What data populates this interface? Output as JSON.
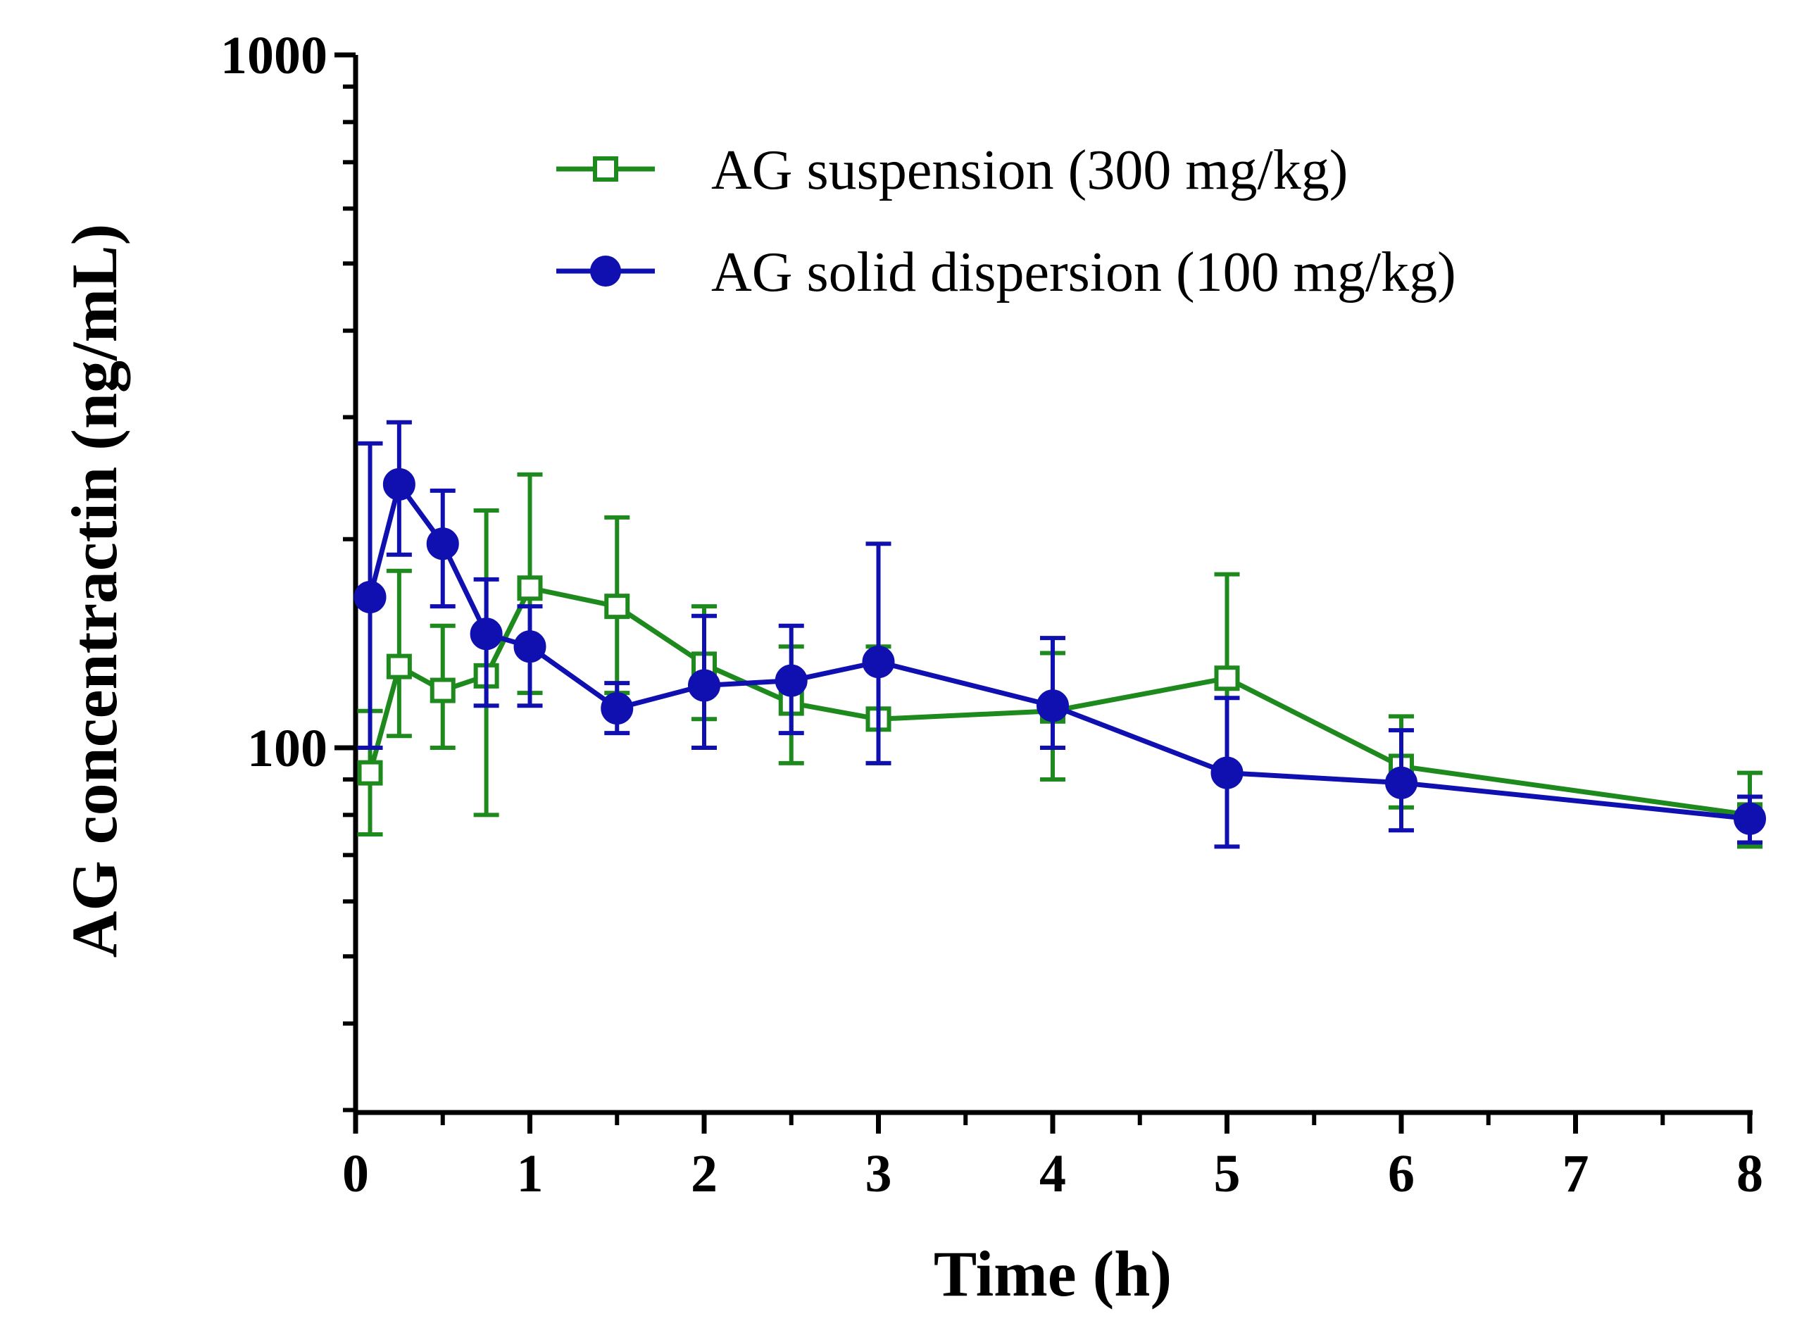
{
  "chart_data": {
    "type": "line",
    "title": "",
    "xlabel": "Time (h)",
    "ylabel": "AG concentractin (ng/mL)",
    "xlim": [
      0,
      8
    ],
    "ylim": [
      30,
      1000
    ],
    "yscale": "log",
    "x_ticks": [
      0,
      1,
      2,
      3,
      4,
      5,
      6,
      7,
      8
    ],
    "x_tick_labels": [
      "0",
      "1",
      "2",
      "3",
      "4",
      "5",
      "6",
      "7",
      "8"
    ],
    "x_minor_ticks": [
      0.5,
      1.5,
      2.5,
      3.5,
      4.5,
      5.5,
      6.5,
      7.5
    ],
    "y_major_ticks": [
      100,
      1000
    ],
    "y_tick_labels": [
      "100",
      "1000"
    ],
    "y_minor_ticks": [
      30,
      40,
      50,
      60,
      70,
      80,
      90,
      200,
      300,
      400,
      500,
      600,
      700,
      800,
      900
    ],
    "legend_position": "top-right",
    "grid": false,
    "series": [
      {
        "name": "AG suspension (300 mg/kg)",
        "color": "#1e8a1e",
        "marker": "open-square",
        "x": [
          0.083,
          0.25,
          0.5,
          0.75,
          1,
          1.5,
          2,
          2.5,
          3,
          4,
          5,
          6,
          8
        ],
        "y": [
          92,
          131,
          121,
          127,
          170,
          160,
          132,
          116,
          110,
          113,
          126,
          94,
          80
        ],
        "err_low": [
          75,
          104,
          100,
          80,
          120,
          120,
          110,
          95,
          95,
          90,
          94,
          82,
          72
        ],
        "err_high": [
          113,
          180,
          150,
          220,
          248,
          215,
          160,
          140,
          140,
          137,
          178,
          111,
          92
        ]
      },
      {
        "name": "AG solid dispersion (100 mg/kg)",
        "color": "#1010b0",
        "marker": "filled-circle",
        "x": [
          0.083,
          0.25,
          0.5,
          0.75,
          1,
          1.5,
          2,
          2.5,
          3,
          4,
          5,
          6,
          8
        ],
        "y": [
          165,
          240,
          197,
          146,
          140,
          114,
          123,
          125,
          133,
          115,
          92,
          89,
          79
        ],
        "err_low": [
          100,
          190,
          160,
          115,
          115,
          105,
          100,
          105,
          95,
          100,
          72,
          76,
          73
        ],
        "err_high": [
          275,
          295,
          235,
          175,
          160,
          124,
          155,
          150,
          197,
          144,
          118,
          106,
          85
        ]
      }
    ]
  }
}
